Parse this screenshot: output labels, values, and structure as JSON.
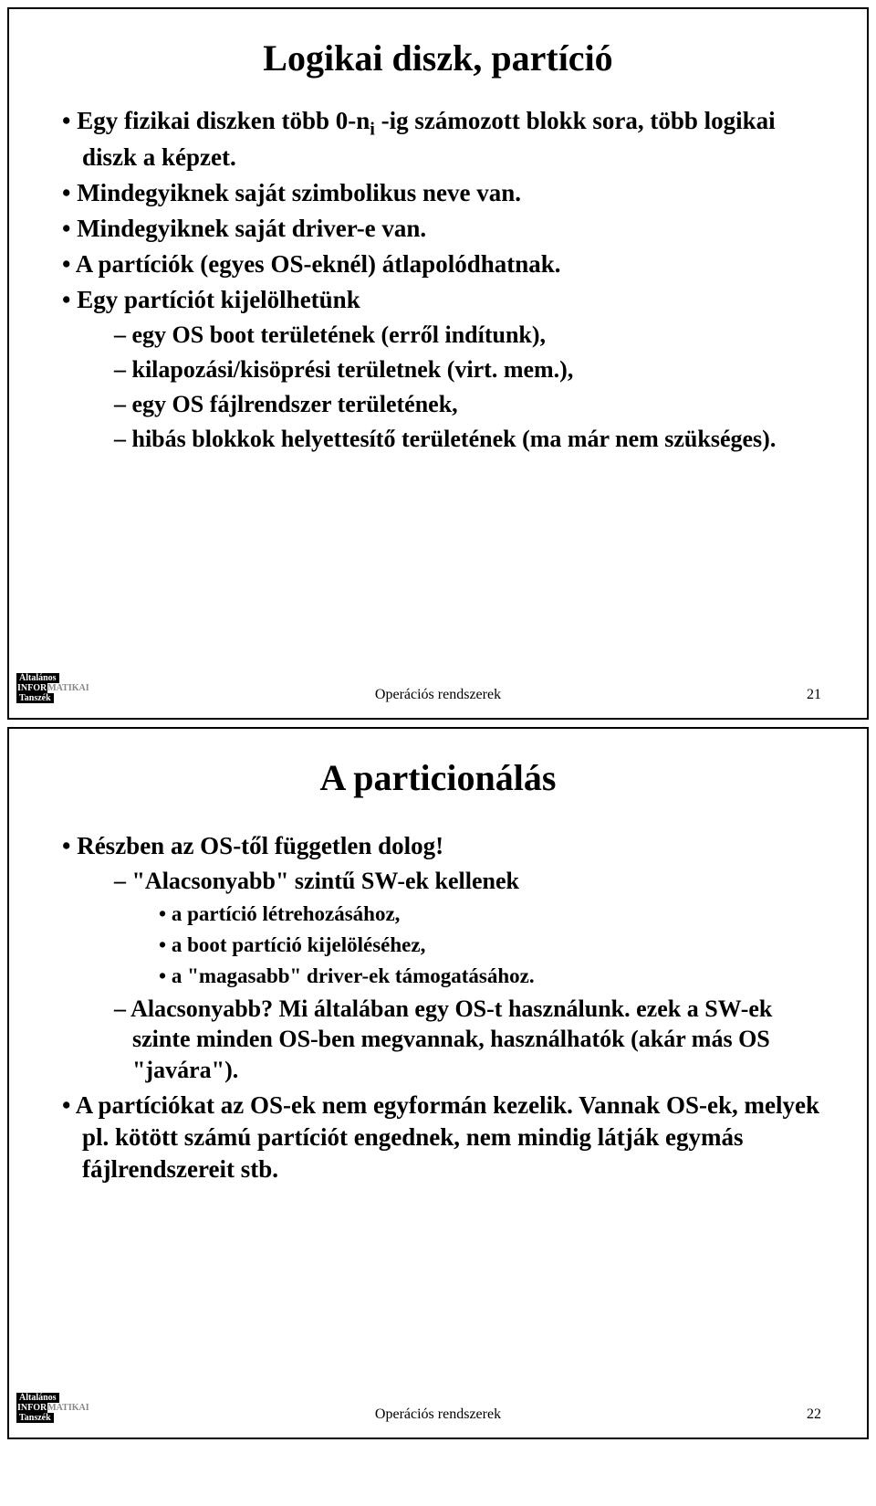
{
  "slide1": {
    "title": "Logikai diszk, partíció",
    "bullets": [
      "Egy fizikai diszken több 0-n",
      " -ig számozott blokk sora, több logikai diszk a képzet.",
      "Mindegyiknek saját szimbolikus neve van.",
      "Mindegyiknek saját driver-e van.",
      "A partíciók (egyes OS-eknél) átlapolódhatnak.",
      "Egy partíciót kijelölhetünk"
    ],
    "subscript": "i",
    "subbullets": [
      "egy OS boot területének (erről indítunk),",
      "kilapozási/kisöprési területnek (virt. mem.),",
      "egy OS fájlrendszer területének,",
      "hibás blokkok helyettesítő területének (ma már nem szükséges)."
    ],
    "footer_center": "Operációs rendszerek",
    "footer_page": "21"
  },
  "slide2": {
    "title": "A particionálás",
    "bullets": [
      "Részben az OS-től független dolog!",
      "A partíciókat az OS-ek nem egyformán kezelik. Vannak OS-ek, melyek pl. kötött számú partíciót engednek, nem mindig látják egymás fájlrendszereit stb."
    ],
    "subbullets": [
      "\"Alacsonyabb\" szintű SW-ek kellenek",
      "Alacsonyabb? Mi általában egy OS-t használunk. ezek a SW-ek szinte minden OS-ben megvannak, használhatók (akár más OS \"javára\")."
    ],
    "subsubbullets": [
      "a partíció létrehozásához,",
      "a boot partíció kijelöléséhez,",
      "a \"magasabb\" driver-ek támogatásához."
    ],
    "footer_center": "Operációs rendszerek",
    "footer_page": "22"
  },
  "logo": {
    "line1": "Általános",
    "line2a": "INFOR",
    "line2b": "MATIKAI",
    "line3": "Tanszék"
  }
}
